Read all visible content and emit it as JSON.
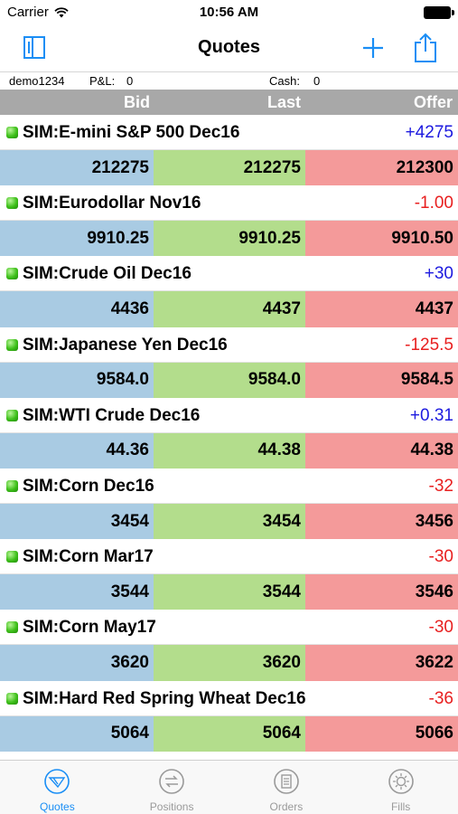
{
  "status_bar": {
    "carrier": "Carrier",
    "time": "10:56 AM"
  },
  "nav": {
    "title": "Quotes"
  },
  "account": {
    "id": "demo1234",
    "pnl_label": "P&L:",
    "pnl_value": "0",
    "cash_label": "Cash:",
    "cash_value": "0"
  },
  "columns": {
    "bid": "Bid",
    "last": "Last",
    "offer": "Offer"
  },
  "quotes": [
    {
      "name": "SIM:E-mini S&P 500 Dec16",
      "change": "+4275",
      "bid": "212275",
      "last": "212275",
      "offer": "212300"
    },
    {
      "name": "SIM:Eurodollar Nov16",
      "change": "-1.00",
      "bid": "9910.25",
      "last": "9910.25",
      "offer": "9910.50"
    },
    {
      "name": "SIM:Crude Oil Dec16",
      "change": "+30",
      "bid": "4436",
      "last": "4437",
      "offer": "4437"
    },
    {
      "name": "SIM:Japanese Yen Dec16",
      "change": "-125.5",
      "bid": "9584.0",
      "last": "9584.0",
      "offer": "9584.5"
    },
    {
      "name": "SIM:WTI Crude Dec16",
      "change": "+0.31",
      "bid": "44.36",
      "last": "44.38",
      "offer": "44.38"
    },
    {
      "name": "SIM:Corn Dec16",
      "change": "-32",
      "bid": "3454",
      "last": "3454",
      "offer": "3456"
    },
    {
      "name": "SIM:Corn Mar17",
      "change": "-30",
      "bid": "3544",
      "last": "3544",
      "offer": "3546"
    },
    {
      "name": "SIM:Corn May17",
      "change": "-30",
      "bid": "3620",
      "last": "3620",
      "offer": "3622"
    },
    {
      "name": "SIM:Hard Red Spring Wheat Dec16",
      "change": "-36",
      "bid": "5064",
      "last": "5064",
      "offer": "5066"
    }
  ],
  "tabs": [
    {
      "label": "Quotes",
      "icon": "quotes-icon",
      "active": true
    },
    {
      "label": "Positions",
      "icon": "positions-icon",
      "active": false
    },
    {
      "label": "Orders",
      "icon": "orders-icon",
      "active": false
    },
    {
      "label": "Fills",
      "icon": "fills-icon",
      "active": false
    }
  ],
  "colors": {
    "accent": "#1a8ef5",
    "positive": "#1d1adf",
    "negative": "#e82020",
    "bid": "#a9cbe3",
    "last": "#b3dd8c",
    "offer": "#f49a9a"
  }
}
